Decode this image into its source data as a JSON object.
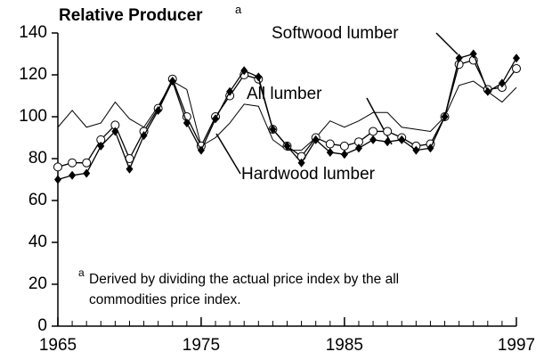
{
  "chart_data": {
    "type": "line",
    "title": "Relative Producer",
    "footnote_marker": "a",
    "footnote": "Derived by dividing the actual price index by the all commodities price index.",
    "x": [
      1965,
      1966,
      1967,
      1968,
      1969,
      1970,
      1971,
      1972,
      1973,
      1974,
      1975,
      1976,
      1977,
      1978,
      1979,
      1980,
      1981,
      1982,
      1983,
      1984,
      1985,
      1986,
      1987,
      1988,
      1989,
      1990,
      1991,
      1992,
      1993,
      1994,
      1995,
      1996,
      1997
    ],
    "series": [
      {
        "name": "Softwood lumber",
        "color": "#000000",
        "marker": "diamond",
        "values": [
          70,
          72,
          73,
          86,
          93,
          75,
          91,
          103,
          117,
          97,
          84,
          99,
          112,
          122,
          119,
          94,
          86,
          78,
          89,
          83,
          82,
          85,
          89,
          88,
          89,
          84,
          85,
          100,
          128,
          130,
          112,
          116,
          128
        ]
      },
      {
        "name": "All lumber",
        "color": "#000000",
        "marker": "circle",
        "values": [
          76,
          78,
          78,
          89,
          96,
          80,
          93,
          104,
          118,
          100,
          86,
          100,
          110,
          120,
          118,
          94,
          86,
          81,
          90,
          87,
          86,
          88,
          93,
          93,
          90,
          86,
          87,
          100,
          125,
          127,
          113,
          114,
          123
        ]
      },
      {
        "name": "Hardwood lumber",
        "color": "#000000",
        "marker": "none",
        "values": [
          95,
          103,
          95,
          97,
          107,
          99,
          95,
          105,
          117,
          113,
          86,
          90,
          97,
          106,
          105,
          89,
          84,
          84,
          90,
          98,
          95,
          98,
          102,
          102,
          95,
          94,
          93,
          100,
          115,
          117,
          112,
          107,
          114
        ]
      }
    ],
    "xlim": [
      1965,
      1997
    ],
    "xticks": [
      1965,
      1975,
      1985,
      1997
    ],
    "ylim": [
      0,
      140
    ],
    "yticks": [
      0,
      20,
      40,
      60,
      80,
      100,
      120,
      140
    ]
  }
}
